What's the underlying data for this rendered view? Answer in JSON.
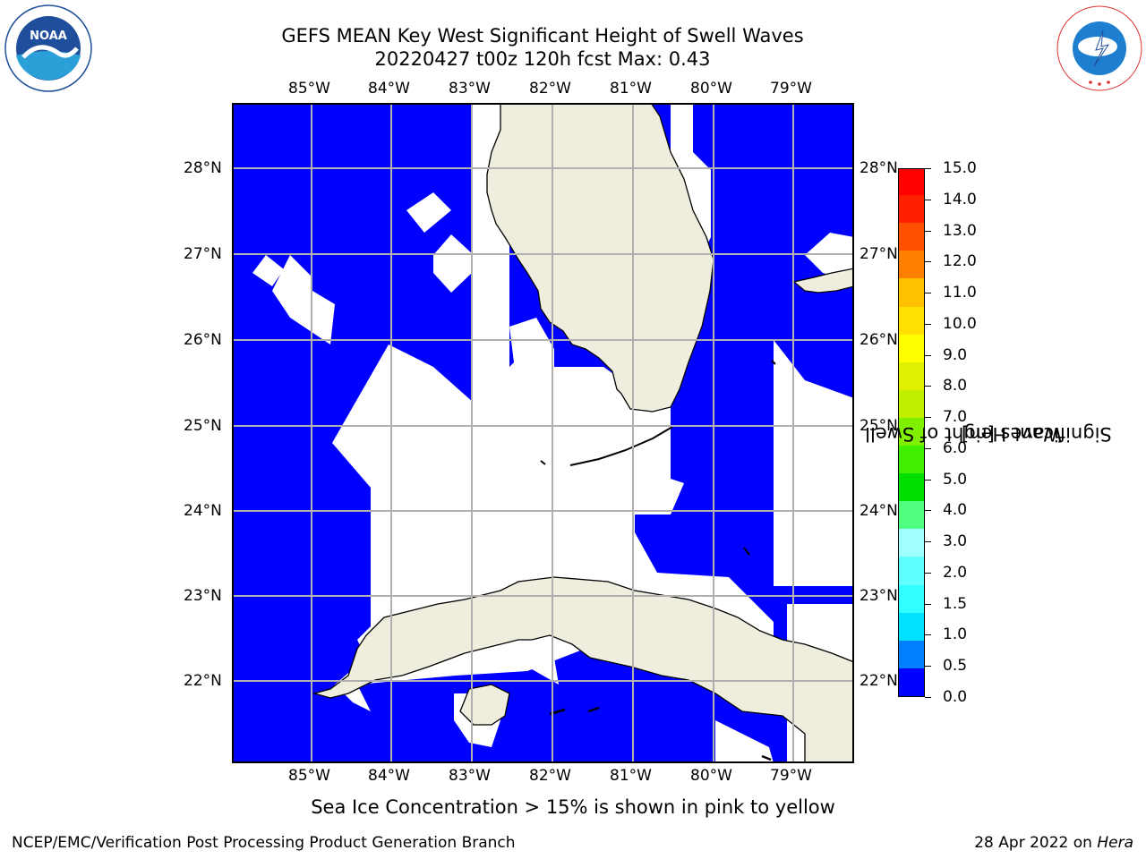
{
  "header": {
    "title_line1": "GEFS MEAN Key West Significant Height of Swell Waves",
    "title_line2": "20220427 t00z 120h fcst   Max: 0.43"
  },
  "logos": {
    "left": {
      "icon": "noaa-logo",
      "text": "NOAA",
      "ring_text": "NATIONAL OCEANIC AND ATMOSPHERIC ADMINISTRATION · U.S. DEPARTMENT OF COMMERCE"
    },
    "right": {
      "icon": "nws-logo",
      "ring_text": "NATIONAL WEATHER SERVICE"
    }
  },
  "map": {
    "longitude_labels": [
      "85°W",
      "84°W",
      "83°W",
      "82°W",
      "81°W",
      "80°W",
      "79°W"
    ],
    "latitude_labels": [
      "28°N",
      "27°N",
      "26°N",
      "25°N",
      "24°N",
      "23°N",
      "22°N"
    ],
    "extent": {
      "lon_min": -86.0,
      "lon_max": -78.25,
      "lat_min": 21.0,
      "lat_max": 28.75
    },
    "colors": {
      "ocean_field": "#0000ff",
      "no_data": "#ffffff",
      "land": "#efedde",
      "grid": "#b0b0b0"
    }
  },
  "colorbar": {
    "title_line1": "Significant Height of Swell",
    "title_line2": "Waves [m]",
    "tick_labels": [
      "0.0",
      "0.5",
      "1.0",
      "1.5",
      "2.0",
      "3.0",
      "4.0",
      "5.0",
      "6.0",
      "7.0",
      "8.0",
      "9.0",
      "10.0",
      "11.0",
      "12.0",
      "13.0",
      "14.0",
      "15.0"
    ],
    "colors": [
      "#0000ff",
      "#0080ff",
      "#00e0ff",
      "#30ffff",
      "#60ffff",
      "#a0ffff",
      "#50ff80",
      "#00e000",
      "#40f000",
      "#80f000",
      "#c0f000",
      "#e0f000",
      "#ffff00",
      "#ffe000",
      "#ffc000",
      "#ff8000",
      "#ff5000",
      "#ff2000",
      "#ff0000"
    ]
  },
  "notes": {
    "sea_ice": "Sea Ice Concentration > 15% is shown in pink to yellow"
  },
  "footer": {
    "left": "NCEP/EMC/Verification Post Processing Product Generation Branch",
    "right_date": "28 Apr 2022 on",
    "right_machine": "Hera"
  }
}
